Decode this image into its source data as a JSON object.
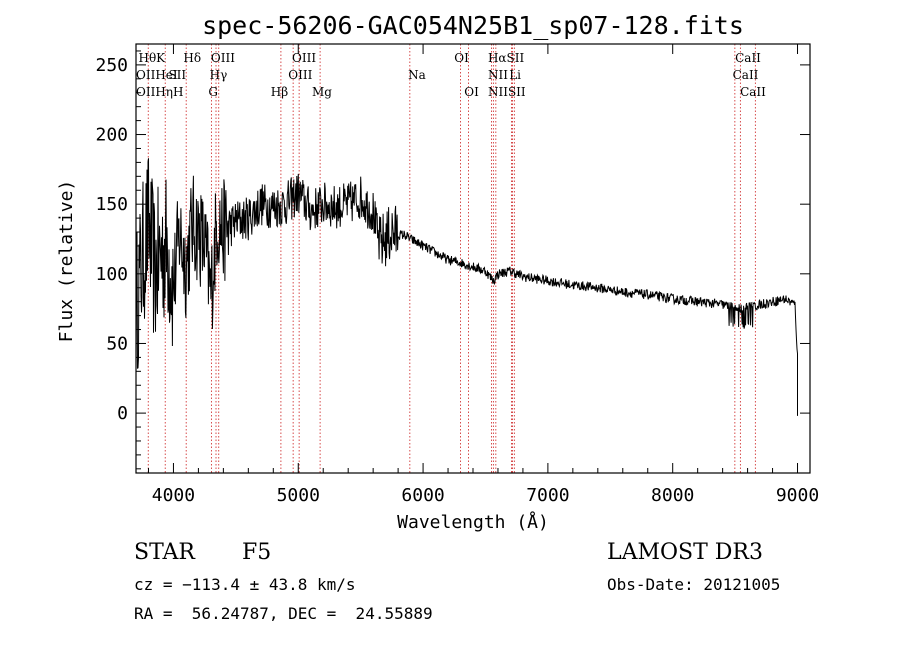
{
  "chart_data": {
    "type": "line",
    "title": "spec-56206-GAC054N25B1_sp07-128.fits",
    "xlabel": "Wavelength (Å)",
    "ylabel": "Flux (relative)",
    "xlim": [
      3700,
      9100
    ],
    "ylim": [
      -43,
      265
    ],
    "xticks": [
      4000,
      5000,
      6000,
      7000,
      8000,
      9000
    ],
    "xtick_labels": [
      "4000",
      "5000",
      "6000",
      "7000",
      "8000",
      "9000"
    ],
    "yticks": [
      0,
      50,
      100,
      150,
      200,
      250
    ],
    "ytick_labels": [
      "0",
      "50",
      "100",
      "150",
      "200",
      "250"
    ],
    "series": [
      {
        "name": "spectrum",
        "x": [
          3700,
          3750,
          3800,
          3850,
          3900,
          3950,
          4000,
          4050,
          4100,
          4150,
          4200,
          4250,
          4300,
          4350,
          4400,
          4500,
          4600,
          4700,
          4800,
          4900,
          5000,
          5100,
          5200,
          5300,
          5400,
          5500,
          5560,
          5600,
          5650,
          5700,
          5750,
          5800,
          5850,
          5900,
          6000,
          6100,
          6200,
          6300,
          6400,
          6500,
          6563,
          6600,
          6700,
          6800,
          7000,
          7200,
          7400,
          7600,
          7800,
          8000,
          8200,
          8400,
          8500,
          8600,
          8700,
          8800,
          8900,
          8980,
          9000
        ],
        "y": [
          75,
          110,
          135,
          100,
          115,
          120,
          90,
          130,
          105,
          135,
          130,
          120,
          85,
          140,
          130,
          138,
          140,
          150,
          148,
          150,
          158,
          145,
          150,
          148,
          150,
          155,
          148,
          145,
          120,
          125,
          130,
          128,
          128,
          125,
          120,
          115,
          110,
          108,
          105,
          102,
          95,
          100,
          102,
          98,
          95,
          92,
          90,
          87,
          85,
          82,
          80,
          78,
          75,
          76,
          78,
          80,
          82,
          78,
          40
        ]
      }
    ],
    "lines": [
      {
        "name": "Hθ",
        "x": 3798
      },
      {
        "name": "K",
        "x": 3934
      },
      {
        "name": "Hδ",
        "x": 4102
      },
      {
        "name": "OIII",
        "x": 4363
      },
      {
        "name": "Hγ",
        "x": 4341
      },
      {
        "name": "G",
        "x": 4304
      },
      {
        "name": "Hβ",
        "x": 4861
      },
      {
        "name": "OIII",
        "x": 4959
      },
      {
        "name": "OIII",
        "x": 5007
      },
      {
        "name": "Mg",
        "x": 5175
      },
      {
        "name": "Na",
        "x": 5894
      },
      {
        "name": "OI",
        "x": 6300
      },
      {
        "name": "OI",
        "x": 6364
      },
      {
        "name": "Hα",
        "x": 6563
      },
      {
        "name": "NII",
        "x": 6548
      },
      {
        "name": "NII",
        "x": 6583
      },
      {
        "name": "SII",
        "x": 6716
      },
      {
        "name": "Li",
        "x": 6708
      },
      {
        "name": "SII",
        "x": 6731
      },
      {
        "name": "CaII",
        "x": 8498
      },
      {
        "name": "CaII",
        "x": 8542
      },
      {
        "name": "CaII",
        "x": 8662
      }
    ],
    "top_labels": [
      "HθK",
      "Hδ",
      "OIII",
      "OIII",
      "OI",
      "HαSII",
      "CaII"
    ],
    "mid_labels": [
      "OIIHeI",
      "SII",
      "Hγ",
      "OIII",
      "Na",
      "NII",
      "Li",
      "CaII"
    ],
    "low_labels": [
      "OIIHηH",
      "G",
      "Hβ",
      "Mg",
      "OI",
      "NIISII",
      "CaII"
    ]
  },
  "info": {
    "object_class": "STAR",
    "subclass": "F5",
    "survey": "LAMOST DR3",
    "cz": "cz = −113.4 ± 43.8 km/s",
    "obs_date": "Obs-Date: 20121005",
    "coords": "RA =  56.24787, DEC =  24.55889"
  }
}
